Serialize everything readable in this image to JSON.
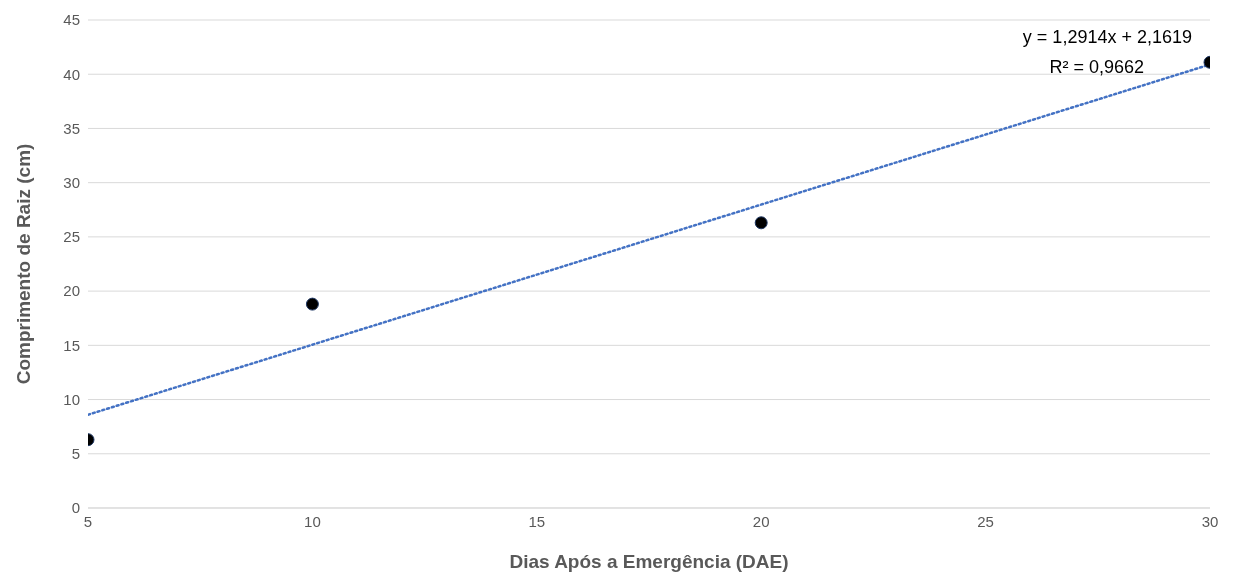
{
  "chart_data": {
    "type": "scatter",
    "xlabel": "Dias Após a Emergência (DAE)",
    "ylabel": "Comprimento de Raiz (cm)",
    "series": [
      {
        "type": "scatter",
        "color": "#000000",
        "marker": "circle",
        "x": [
          5,
          10,
          20,
          30
        ],
        "values": [
          6.3,
          18.8,
          26.3,
          41.1
        ]
      },
      {
        "type": "line",
        "color": "#4472c4",
        "line_style": "dotted",
        "x": [
          5,
          30
        ],
        "values": [
          8.6,
          40.9
        ]
      }
    ],
    "xlim": [
      5,
      30
    ],
    "xticks": [
      5,
      10,
      15,
      20,
      25,
      30
    ],
    "ylim": [
      0,
      45
    ],
    "yticks": [
      0,
      5,
      10,
      15,
      20,
      25,
      30,
      35,
      40,
      45
    ],
    "grid": "y",
    "annotations": [
      "y = 1,2914x + 2,1619",
      "R² = 0,9662"
    ]
  }
}
